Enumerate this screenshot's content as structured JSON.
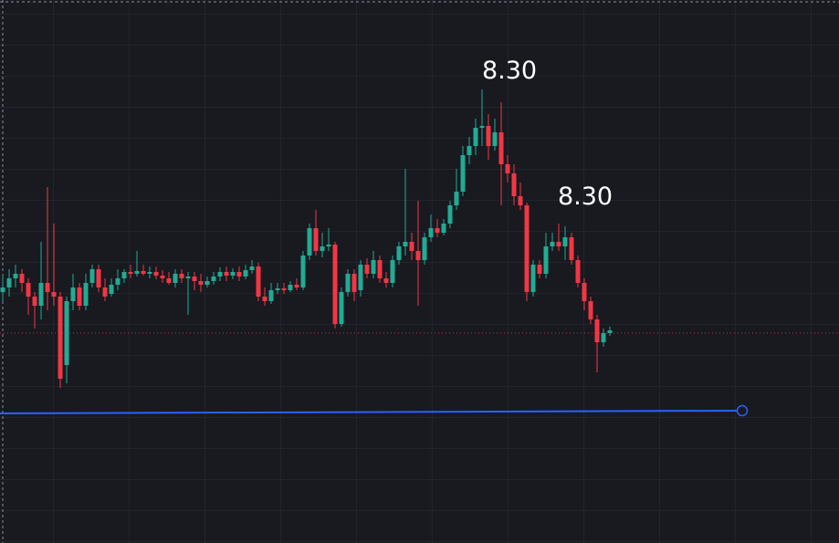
{
  "chart_data": {
    "type": "candlestick",
    "ylim": [
      3.33,
      9.28
    ],
    "up_color": "#22ab94",
    "down_color": "#f23645",
    "open": [
      6.08,
      6.13,
      6.23,
      6.28,
      6.18,
      6.03,
      5.93,
      6.18,
      6.08,
      6.03,
      5.28,
      5.98,
      6.13,
      5.93,
      6.18,
      6.33,
      6.13,
      6.06,
      6.16,
      6.23,
      6.3,
      6.28,
      6.31,
      6.28,
      6.3,
      6.26,
      6.23,
      6.18,
      6.28,
      6.23,
      6.25,
      6.2,
      6.16,
      6.2,
      6.25,
      6.3,
      6.26,
      6.3,
      6.25,
      6.32,
      6.36,
      6.03,
      5.98,
      6.1,
      6.12,
      6.1,
      6.16,
      6.13,
      6.48,
      6.78,
      6.53,
      6.58,
      6.6,
      5.73,
      6.08,
      6.28,
      6.1,
      6.38,
      6.28,
      6.43,
      6.23,
      6.18,
      6.43,
      6.58,
      6.63,
      6.53,
      6.43,
      6.68,
      6.78,
      6.73,
      6.83,
      7.03,
      7.18,
      7.58,
      7.68,
      7.88,
      7.9,
      7.68,
      7.83,
      7.48,
      7.38,
      7.13,
      7.03,
      6.08,
      6.38,
      6.28,
      6.58,
      6.63,
      6.58,
      6.68,
      6.43,
      6.18,
      5.98,
      5.78,
      5.53,
      5.63
    ],
    "high": [
      6.28,
      6.33,
      6.38,
      6.33,
      6.23,
      6.08,
      6.63,
      7.23,
      6.83,
      6.08,
      6.03,
      6.28,
      6.18,
      6.28,
      6.38,
      6.38,
      6.23,
      6.23,
      6.33,
      6.33,
      6.38,
      6.53,
      6.38,
      6.36,
      6.36,
      6.32,
      6.3,
      6.33,
      6.33,
      6.3,
      6.3,
      6.28,
      6.25,
      6.3,
      6.35,
      6.36,
      6.34,
      6.36,
      6.38,
      6.43,
      6.4,
      6.13,
      6.18,
      6.18,
      6.18,
      6.2,
      6.23,
      6.53,
      6.83,
      6.98,
      6.73,
      6.78,
      6.63,
      6.13,
      6.33,
      6.33,
      6.43,
      6.45,
      6.53,
      6.48,
      6.3,
      6.48,
      6.63,
      7.43,
      6.73,
      7.08,
      6.73,
      6.93,
      6.88,
      6.88,
      7.08,
      7.43,
      7.68,
      7.78,
      7.98,
      8.3,
      8.03,
      7.98,
      8.16,
      7.58,
      7.48,
      7.28,
      7.06,
      6.43,
      6.43,
      6.73,
      6.73,
      6.83,
      6.8,
      6.73,
      6.48,
      6.23,
      6.03,
      5.83,
      5.68,
      5.7
    ],
    "low": [
      5.98,
      6.03,
      6.13,
      6.08,
      5.83,
      5.68,
      5.78,
      5.88,
      5.93,
      5.03,
      5.08,
      5.88,
      5.88,
      5.88,
      6.13,
      6.08,
      5.98,
      6.03,
      6.1,
      6.18,
      6.23,
      6.25,
      6.26,
      6.23,
      6.22,
      6.18,
      6.16,
      6.13,
      6.18,
      5.83,
      6.1,
      6.08,
      6.13,
      6.16,
      6.2,
      6.2,
      6.22,
      6.2,
      6.22,
      6.28,
      5.98,
      5.93,
      5.95,
      6.06,
      6.06,
      6.08,
      6.1,
      6.1,
      6.43,
      6.48,
      6.46,
      6.53,
      5.68,
      5.7,
      6.03,
      5.98,
      6.03,
      6.23,
      6.23,
      6.18,
      6.13,
      6.13,
      6.38,
      6.48,
      6.43,
      5.93,
      6.38,
      6.63,
      6.68,
      6.7,
      6.78,
      6.98,
      7.13,
      7.48,
      7.58,
      7.68,
      7.53,
      7.63,
      7.03,
      7.28,
      7.03,
      6.98,
      5.98,
      6.03,
      6.23,
      6.23,
      6.53,
      6.53,
      6.43,
      6.38,
      6.13,
      5.88,
      5.73,
      5.2,
      5.48,
      5.6
    ],
    "close": [
      6.13,
      6.23,
      6.28,
      6.18,
      6.03,
      5.93,
      6.18,
      6.08,
      6.03,
      5.13,
      5.98,
      6.13,
      5.93,
      6.18,
      6.33,
      6.13,
      6.03,
      6.16,
      6.23,
      6.3,
      6.28,
      6.31,
      6.28,
      6.3,
      6.26,
      6.23,
      6.18,
      6.28,
      6.23,
      6.25,
      6.2,
      6.16,
      6.2,
      6.25,
      6.3,
      6.26,
      6.3,
      6.25,
      6.32,
      6.36,
      6.03,
      5.98,
      6.1,
      6.12,
      6.1,
      6.16,
      6.13,
      6.48,
      6.78,
      6.53,
      6.58,
      6.6,
      5.73,
      6.08,
      6.28,
      6.08,
      6.38,
      6.28,
      6.43,
      6.23,
      6.18,
      6.43,
      6.58,
      6.63,
      6.53,
      6.43,
      6.68,
      6.78,
      6.73,
      6.83,
      7.03,
      7.18,
      7.58,
      7.68,
      7.88,
      7.9,
      7.68,
      7.83,
      7.48,
      7.38,
      7.13,
      7.03,
      6.08,
      6.38,
      6.28,
      6.58,
      6.63,
      6.58,
      6.68,
      6.43,
      6.18,
      5.98,
      5.78,
      5.53,
      5.63,
      5.66
    ],
    "price_line": {
      "value": 5.63,
      "color": "#f23645"
    },
    "trend_line": {
      "values": [
        4.75,
        4.78
      ],
      "color": "#2962ff"
    },
    "annotations": [
      "8.30",
      "8.30"
    ]
  }
}
